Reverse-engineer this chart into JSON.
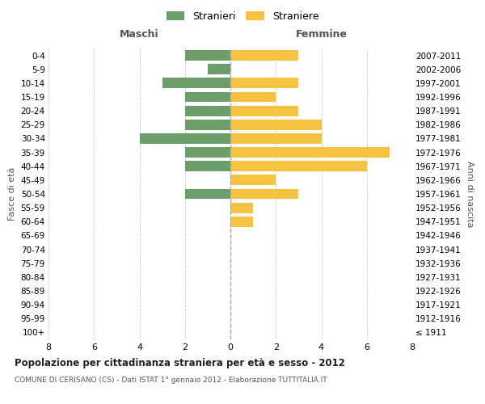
{
  "age_groups": [
    "100+",
    "95-99",
    "90-94",
    "85-89",
    "80-84",
    "75-79",
    "70-74",
    "65-69",
    "60-64",
    "55-59",
    "50-54",
    "45-49",
    "40-44",
    "35-39",
    "30-34",
    "25-29",
    "20-24",
    "15-19",
    "10-14",
    "5-9",
    "0-4"
  ],
  "birth_years": [
    "≤ 1911",
    "1912-1916",
    "1917-1921",
    "1922-1926",
    "1927-1931",
    "1932-1936",
    "1937-1941",
    "1942-1946",
    "1947-1951",
    "1952-1956",
    "1957-1961",
    "1962-1966",
    "1967-1971",
    "1972-1976",
    "1977-1981",
    "1982-1986",
    "1987-1991",
    "1992-1996",
    "1997-2001",
    "2002-2006",
    "2007-2011"
  ],
  "maschi": [
    0,
    0,
    0,
    0,
    0,
    0,
    0,
    0,
    0,
    0,
    2,
    0,
    2,
    2,
    4,
    2,
    2,
    2,
    3,
    1,
    2
  ],
  "femmine": [
    0,
    0,
    0,
    0,
    0,
    0,
    0,
    0,
    1,
    1,
    3,
    2,
    6,
    7,
    4,
    4,
    3,
    2,
    3,
    0,
    3
  ],
  "male_color": "#6b9e6b",
  "female_color": "#f5c242",
  "title": "Popolazione per cittadinanza straniera per età e sesso - 2012",
  "subtitle": "COMUNE DI CERISANO (CS) - Dati ISTAT 1° gennaio 2012 - Elaborazione TUTTITALIA.IT",
  "xlabel_left": "Maschi",
  "xlabel_right": "Femmine",
  "ylabel_left": "Fasce di età",
  "ylabel_right": "Anni di nascita",
  "legend_male": "Stranieri",
  "legend_female": "Straniere",
  "xlim": 8,
  "background_color": "#ffffff",
  "grid_color": "#cccccc"
}
